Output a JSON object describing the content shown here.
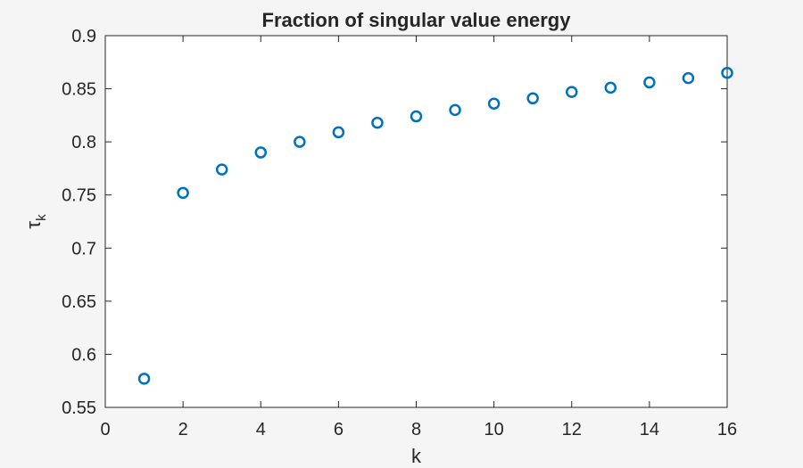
{
  "chart_data": {
    "type": "scatter",
    "title": "Fraction of singular value energy",
    "xlabel": "k",
    "ylabel": {
      "base": "τ",
      "subscript": "k"
    },
    "xlim": [
      0,
      16
    ],
    "ylim": [
      0.55,
      0.9
    ],
    "xticks": [
      0,
      2,
      4,
      6,
      8,
      10,
      12,
      14,
      16
    ],
    "yticks": [
      0.55,
      0.6,
      0.65,
      0.7,
      0.75,
      0.8,
      0.85,
      0.9
    ],
    "xtick_labels": [
      "0",
      "2",
      "4",
      "6",
      "8",
      "10",
      "12",
      "14",
      "16"
    ],
    "ytick_labels": [
      "0.55",
      "0.6",
      "0.65",
      "0.7",
      "0.75",
      "0.8",
      "0.85",
      "0.9"
    ],
    "grid": false,
    "marker": "circle-open",
    "marker_color": "#0072BD",
    "series": [
      {
        "x": [
          1,
          2,
          3,
          4,
          5,
          6,
          7,
          8,
          9,
          10,
          11,
          12,
          13,
          14,
          15,
          16
        ],
        "y": [
          0.577,
          0.752,
          0.774,
          0.79,
          0.8,
          0.809,
          0.818,
          0.824,
          0.83,
          0.836,
          0.841,
          0.847,
          0.851,
          0.856,
          0.86,
          0.865
        ]
      }
    ]
  }
}
